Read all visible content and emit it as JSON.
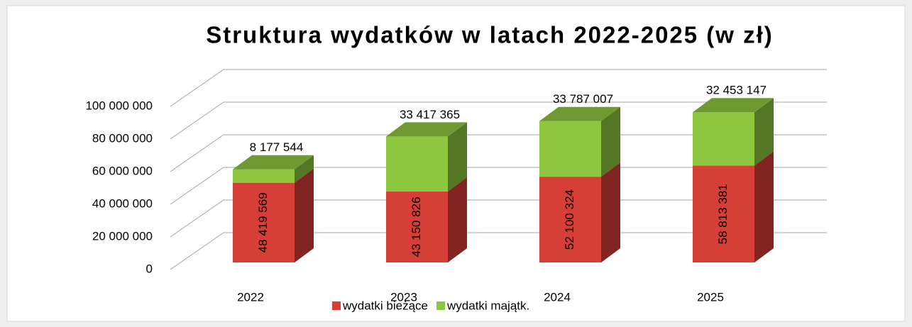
{
  "chart_data": {
    "type": "bar3d",
    "stacked": true,
    "title": "Struktura wydatków w latach 2022-2025 (w zł)",
    "categories": [
      "2022",
      "2023",
      "2024",
      "2025"
    ],
    "series": [
      {
        "name": "wydatki bieżące",
        "color": "#d63f38",
        "values": [
          48419569,
          43150826,
          52100324,
          58813381
        ],
        "value_labels": [
          "48 419 569",
          "43 150 826",
          "52 100 324",
          "58 813 381"
        ]
      },
      {
        "name": "wydatki majątk.",
        "color": "#8dc63f",
        "values": [
          8177544,
          33417365,
          33787007,
          32453147
        ],
        "value_labels": [
          "8 177 544",
          "33 417 365",
          "33 787 007",
          "32 453 147"
        ]
      }
    ],
    "ylim": [
      0,
      100000000
    ],
    "yticks": [
      {
        "value": 0,
        "label": "0"
      },
      {
        "value": 20000000,
        "label": "20 000 000"
      },
      {
        "value": 40000000,
        "label": "40 000 000"
      },
      {
        "value": 60000000,
        "label": "60 000 000"
      },
      {
        "value": 80000000,
        "label": "80 000 000"
      },
      {
        "value": 100000000,
        "label": "100 000 000"
      }
    ],
    "grid": true,
    "legend": "bottom"
  }
}
